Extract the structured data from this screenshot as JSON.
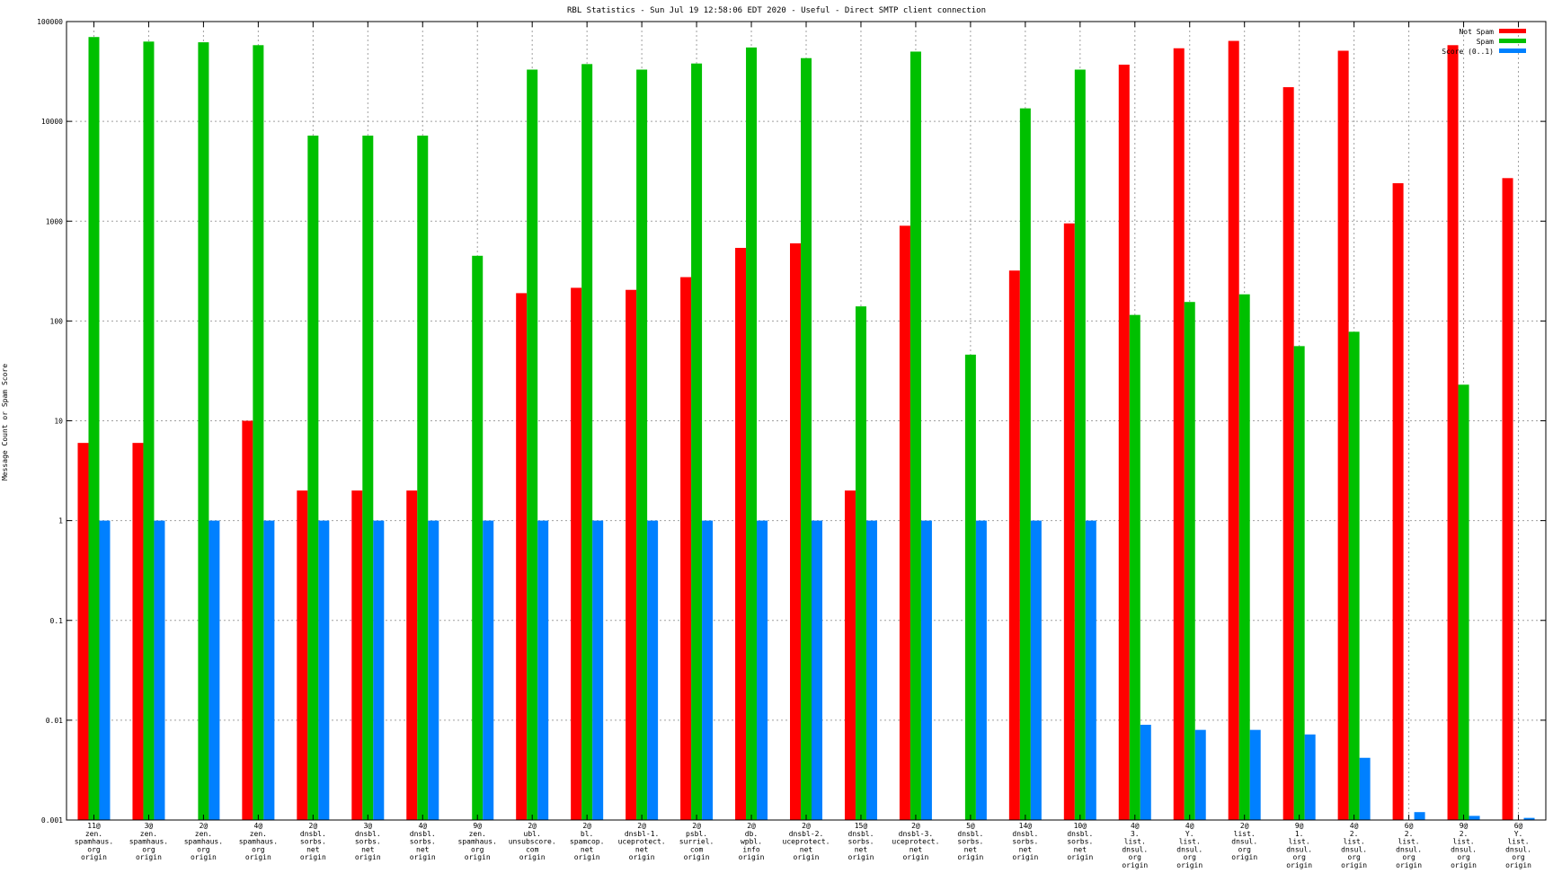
{
  "chart_data": {
    "type": "bar",
    "title": "RBL Statistics - Sun Jul 19 12:58:06 EDT 2020 - Useful - Direct SMTP client connection",
    "xlabel": "",
    "ylabel": "Message Count or Spam Score",
    "yscale": "log",
    "ylim": [
      0.001,
      100000
    ],
    "yticks": [
      "0.001",
      "0.01",
      "0.1",
      "1",
      "10",
      "100",
      "1000",
      "10000",
      "100000"
    ],
    "grid": true,
    "legend_position": "top-right",
    "categories": [
      [
        "11@",
        "zen.",
        "spamhaus.",
        "org",
        "origin"
      ],
      [
        "3@",
        "zen.",
        "spamhaus.",
        "org",
        "origin"
      ],
      [
        "2@",
        "zen.",
        "spamhaus.",
        "org",
        "origin"
      ],
      [
        "4@",
        "zen.",
        "spamhaus.",
        "org",
        "origin"
      ],
      [
        "2@",
        "dnsbl.",
        "sorbs.",
        "net",
        "origin"
      ],
      [
        "3@",
        "dnsbl.",
        "sorbs.",
        "net",
        "origin"
      ],
      [
        "4@",
        "dnsbl.",
        "sorbs.",
        "net",
        "origin"
      ],
      [
        "9@",
        "zen.",
        "spamhaus.",
        "org",
        "origin"
      ],
      [
        "2@",
        "ubl.",
        "unsubscore.",
        "com",
        "origin"
      ],
      [
        "2@",
        "bl.",
        "spamcop.",
        "net",
        "origin"
      ],
      [
        "2@",
        "dnsbl-1.",
        "uceprotect.",
        "net",
        "origin"
      ],
      [
        "2@",
        "psbl.",
        "surriel.",
        "com",
        "origin"
      ],
      [
        "2@",
        "db.",
        "wpbl.",
        "info",
        "origin"
      ],
      [
        "2@",
        "dnsbl-2.",
        "uceprotect.",
        "net",
        "origin"
      ],
      [
        "15@",
        "dnsbl.",
        "sorbs.",
        "net",
        "origin"
      ],
      [
        "2@",
        "dnsbl-3.",
        "uceprotect.",
        "net",
        "origin"
      ],
      [
        "5@",
        "dnsbl.",
        "sorbs.",
        "net",
        "origin"
      ],
      [
        "14@",
        "dnsbl.",
        "sorbs.",
        "net",
        "origin"
      ],
      [
        "10@",
        "dnsbl.",
        "sorbs.",
        "net",
        "origin"
      ],
      [
        "4@",
        "3.",
        "list.",
        "dnsul.",
        "org",
        "origin"
      ],
      [
        "4@",
        "Y.",
        "list.",
        "dnsul.",
        "org",
        "origin"
      ],
      [
        "2@",
        "list.",
        "dnsul.",
        "org",
        "origin"
      ],
      [
        "9@",
        "1.",
        "list.",
        "dnsul.",
        "org",
        "origin"
      ],
      [
        "4@",
        "2.",
        "list.",
        "dnsul.",
        "org",
        "origin"
      ],
      [
        "6@",
        "2.",
        "list.",
        "dnsul.",
        "org",
        "origin"
      ],
      [
        "9@",
        "2.",
        "list.",
        "dnsul.",
        "org",
        "origin"
      ],
      [
        "6@",
        "Y.",
        "list.",
        "dnsul.",
        "org",
        "origin"
      ]
    ],
    "series": [
      {
        "name": "Not Spam",
        "color": "#ff0000",
        "values": [
          6,
          6,
          null,
          10,
          2,
          2,
          2,
          null,
          190,
          215,
          205,
          275,
          540,
          600,
          2,
          900,
          null,
          320,
          950,
          37000,
          54000,
          64000,
          22000,
          51000,
          2400,
          58000,
          2700
        ]
      },
      {
        "name": "Spam",
        "color": "#00c000",
        "values": [
          70000,
          63000,
          62000,
          58000,
          7200,
          7200,
          7200,
          450,
          33000,
          37500,
          33000,
          38000,
          55000,
          43000,
          140,
          50000,
          46,
          13500,
          33000,
          115,
          155,
          185,
          56,
          78,
          null,
          23,
          null
        ]
      },
      {
        "name": "Score (0..1)",
        "color": "#0080ff",
        "values": [
          1,
          1,
          1,
          1,
          1,
          1,
          1,
          1,
          1,
          1,
          1,
          1,
          1,
          1,
          1,
          1,
          1,
          1,
          1,
          0.009,
          0.008,
          0.008,
          0.0072,
          0.0042,
          0.0012,
          0.0011,
          0.00105
        ]
      }
    ]
  }
}
